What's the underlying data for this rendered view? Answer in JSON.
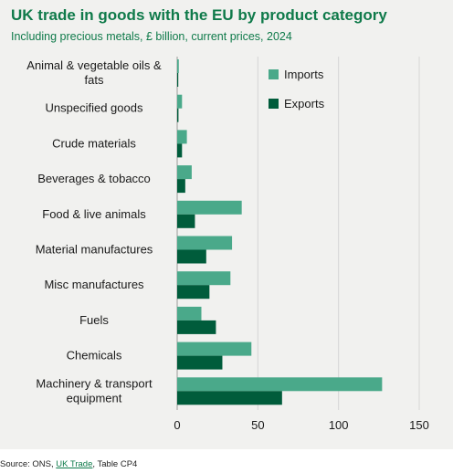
{
  "chart_data": {
    "type": "bar",
    "orientation": "horizontal",
    "title": "UK trade in goods with the EU by product category",
    "subtitle": "Including precious metals, £ billion, current prices, 2024",
    "categories": [
      [
        "Animal & vegetable oils &",
        "fats"
      ],
      [
        "Unspecified goods"
      ],
      [
        "Crude materials"
      ],
      [
        "Beverages & tobacco"
      ],
      [
        "Food & live animals"
      ],
      [
        "Material manufactures"
      ],
      [
        "Misc manufactures"
      ],
      [
        "Fuels"
      ],
      [
        "Chemicals"
      ],
      [
        "Machinery & transport",
        "equipment"
      ]
    ],
    "series": [
      {
        "name": "Imports",
        "color": "#4aa98a",
        "values": [
          1,
          3,
          6,
          9,
          40,
          34,
          33,
          15,
          46,
          127
        ]
      },
      {
        "name": "Exports",
        "color": "#005c3b",
        "values": [
          0.5,
          0.8,
          3,
          5,
          11,
          18,
          20,
          24,
          28,
          65
        ]
      }
    ],
    "xlim": [
      0,
      150
    ],
    "xticks": [
      0,
      50,
      100,
      150
    ],
    "grid": true,
    "legend_position": "top-right"
  },
  "source": {
    "prefix": "Source: ONS, ",
    "link_text": "UK Trade",
    "suffix": ", Table CP4"
  }
}
